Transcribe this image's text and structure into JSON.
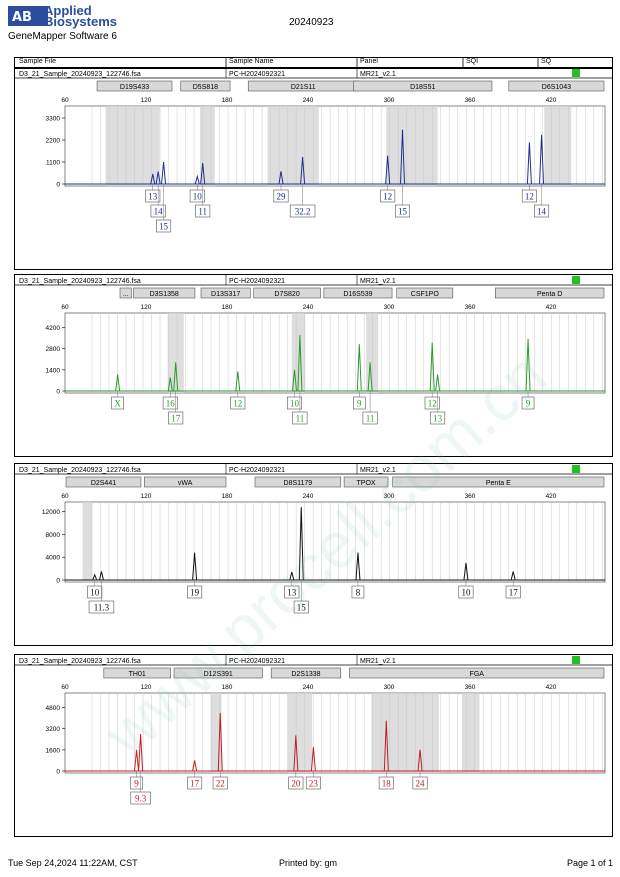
{
  "header": {
    "company_line1": "Applied",
    "company_line2": "Biosystems",
    "software": "GeneMapper Software 6",
    "run_date": "20240923"
  },
  "columns": {
    "sample_file": "Sample File",
    "sample_name": "Sample Name",
    "panel": "Panel",
    "sqi": "SQI",
    "sq": "SQ"
  },
  "footer": {
    "timestamp": "Tue Sep 24,2024 11:22AM, CST",
    "printed_by": "Printed by: gm",
    "page": "Page 1 of 1"
  },
  "watermark": "www.procell.com.cn",
  "chart_data": [
    {
      "type": "line",
      "sample_file": "D3_21_Sample_20240923_122746.fsa",
      "sample_name": "PC-H2024092321",
      "panel": "MR21_v2.1",
      "color": "#1f2f8f",
      "xlim": [
        60,
        460
      ],
      "x_ticks": [
        60,
        120,
        180,
        240,
        300,
        360,
        420
      ],
      "ylim": [
        0,
        3700
      ],
      "y_ticks": [
        0,
        1100,
        2200,
        3300
      ],
      "loci": [
        {
          "name": "D19S433",
          "x0": 83,
          "x1": 140
        },
        {
          "name": "D5S818",
          "x0": 145,
          "x1": 183
        },
        {
          "name": "D21S11",
          "x0": 195,
          "x1": 278
        },
        {
          "name": "D18S51",
          "x0": 273,
          "x1": 377
        },
        {
          "name": "D6S1043",
          "x0": 388,
          "x1": 460
        }
      ],
      "bins": [
        [
          90,
          130
        ],
        [
          160,
          171
        ],
        [
          210,
          248
        ],
        [
          298,
          336
        ],
        [
          415,
          435
        ]
      ],
      "peaks": [
        {
          "x": 125,
          "height": 500,
          "label": "13"
        },
        {
          "x": 129,
          "height": 620,
          "label": "14"
        },
        {
          "x": 133,
          "height": 1100,
          "label": "15"
        },
        {
          "x": 158,
          "height": 380,
          "label": "10"
        },
        {
          "x": 162,
          "height": 1050,
          "label": "11"
        },
        {
          "x": 220,
          "height": 640,
          "label": "29"
        },
        {
          "x": 236,
          "height": 1350,
          "label": "32.2"
        },
        {
          "x": 299,
          "height": 1420,
          "label": "12"
        },
        {
          "x": 310,
          "height": 2720,
          "label": "15"
        },
        {
          "x": 404,
          "height": 2080,
          "label": "12"
        },
        {
          "x": 413,
          "height": 2460,
          "label": "14"
        }
      ]
    },
    {
      "type": "line",
      "sample_file": "D3_21_Sample_20240923_122746.fsa",
      "sample_name": "PC-H2024092321",
      "panel": "MR21_v2.1",
      "color": "#2e9a2e",
      "xlim": [
        60,
        460
      ],
      "x_ticks": [
        60,
        120,
        180,
        240,
        300,
        360,
        420
      ],
      "ylim": [
        0,
        4900
      ],
      "y_ticks": [
        0,
        1400,
        2800,
        4200
      ],
      "loci": [
        {
          "name": "...",
          "x0": 100,
          "x1": 110
        },
        {
          "name": "D3S1358",
          "x0": 110,
          "x1": 157
        },
        {
          "name": "D13S317",
          "x0": 160,
          "x1": 198
        },
        {
          "name": "D7S820",
          "x0": 199,
          "x1": 250
        },
        {
          "name": "D16S539",
          "x0": 251,
          "x1": 303
        },
        {
          "name": "CSF1PO",
          "x0": 305,
          "x1": 348
        },
        {
          "name": "Penta D",
          "x0": 378,
          "x1": 460
        }
      ],
      "bins": [
        [
          136,
          148
        ],
        [
          228,
          238
        ],
        [
          283,
          292
        ]
      ],
      "peaks": [
        {
          "x": 99,
          "height": 1100,
          "label": "X"
        },
        {
          "x": 138,
          "height": 900,
          "label": "16"
        },
        {
          "x": 142,
          "height": 1900,
          "label": "17"
        },
        {
          "x": 188,
          "height": 1300,
          "label": "12"
        },
        {
          "x": 230,
          "height": 1400,
          "label": "10"
        },
        {
          "x": 234,
          "height": 3700,
          "label": "11"
        },
        {
          "x": 278,
          "height": 3100,
          "label": "9"
        },
        {
          "x": 286,
          "height": 1900,
          "label": "11"
        },
        {
          "x": 332,
          "height": 3200,
          "label": "12"
        },
        {
          "x": 336,
          "height": 1100,
          "label": "13"
        },
        {
          "x": 403,
          "height": 3450,
          "label": "9"
        }
      ]
    },
    {
      "type": "line",
      "sample_file": "D3_21_Sample_20240923_122746.fsa",
      "sample_name": "PC-H2024092321",
      "panel": "MR21_v2.1",
      "color": "#111111",
      "xlim": [
        60,
        460
      ],
      "x_ticks": [
        60,
        120,
        180,
        240,
        300,
        360,
        420
      ],
      "ylim": [
        0,
        13000
      ],
      "y_ticks": [
        0,
        4000,
        8000,
        12000
      ],
      "loci": [
        {
          "name": "D2S441",
          "x0": 60,
          "x1": 117
        },
        {
          "name": "vWA",
          "x0": 118,
          "x1": 180
        },
        {
          "name": "D8S1179",
          "x0": 200,
          "x1": 265
        },
        {
          "name": "TPOX",
          "x0": 266,
          "x1": 300
        },
        {
          "name": "Penta E",
          "x0": 302,
          "x1": 460
        }
      ],
      "bins": [
        [
          73,
          80
        ]
      ],
      "peaks": [
        {
          "x": 82,
          "height": 900,
          "label": "10"
        },
        {
          "x": 87,
          "height": 1500,
          "label": "11.3"
        },
        {
          "x": 156,
          "height": 4800,
          "label": "19"
        },
        {
          "x": 228,
          "height": 1400,
          "label": "13"
        },
        {
          "x": 235,
          "height": 12800,
          "label": "15"
        },
        {
          "x": 277,
          "height": 4800,
          "label": "8"
        },
        {
          "x": 357,
          "height": 3000,
          "label": "10"
        },
        {
          "x": 392,
          "height": 1500,
          "label": "17"
        }
      ]
    },
    {
      "type": "line",
      "sample_file": "D3_21_Sample_20240923_122746.fsa",
      "sample_name": "PC-H2024092321",
      "panel": "MR21_v2.1",
      "color": "#c02020",
      "xlim": [
        60,
        460
      ],
      "x_ticks": [
        60,
        120,
        180,
        240,
        300,
        360,
        420
      ],
      "ylim": [
        0,
        5600
      ],
      "y_ticks": [
        0,
        1600,
        3200,
        4800
      ],
      "loci": [
        {
          "name": "TH01",
          "x0": 88,
          "x1": 139
        },
        {
          "name": "D12S391",
          "x0": 140,
          "x1": 207
        },
        {
          "name": "D2S1338",
          "x0": 212,
          "x1": 265
        },
        {
          "name": "FGA",
          "x0": 270,
          "x1": 460
        }
      ],
      "bins": [
        [
          168,
          176
        ],
        [
          225,
          243
        ],
        [
          287,
          337
        ],
        [
          354,
          367
        ]
      ],
      "peaks": [
        {
          "x": 113,
          "height": 1600,
          "label": "9"
        },
        {
          "x": 116,
          "height": 2800,
          "label": "9.3"
        },
        {
          "x": 156,
          "height": 800,
          "label": "17"
        },
        {
          "x": 175,
          "height": 4400,
          "label": "22"
        },
        {
          "x": 231,
          "height": 2700,
          "label": "20"
        },
        {
          "x": 244,
          "height": 1800,
          "label": "23"
        },
        {
          "x": 298,
          "height": 3800,
          "label": "18"
        },
        {
          "x": 323,
          "height": 1600,
          "label": "24"
        }
      ]
    }
  ]
}
